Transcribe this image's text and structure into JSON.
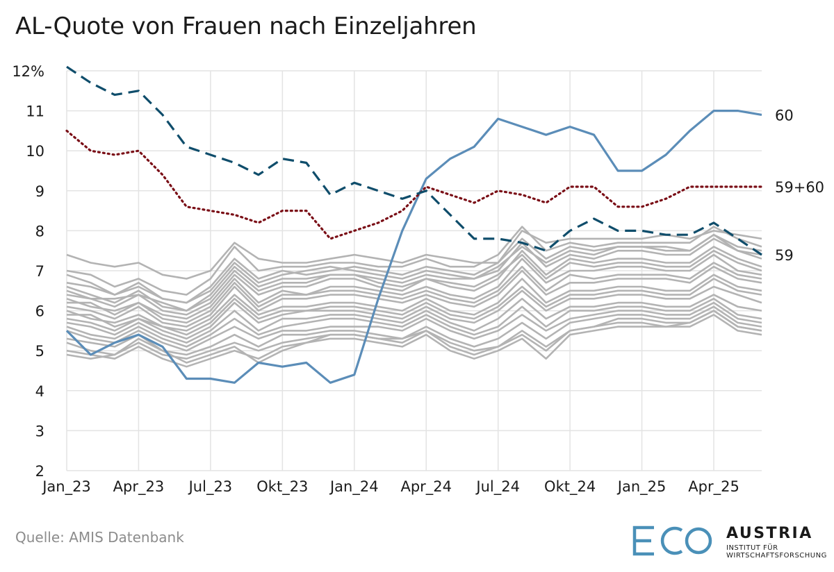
{
  "chart_data": {
    "type": "line",
    "title": "AL-Quote von Frauen nach Einzeljahren",
    "source": "Quelle: AMIS Datenbank",
    "ylim": [
      2,
      12
    ],
    "y_ticks": [
      "2",
      "3",
      "4",
      "5",
      "6",
      "7",
      "8",
      "9",
      "10",
      "11",
      "12%"
    ],
    "x_tick_labels": [
      "Jan_23",
      "Apr_23",
      "Jul_23",
      "Okt_23",
      "Jan_24",
      "Apr_24",
      "Jul_24",
      "Okt_24",
      "Jan_25",
      "Apr_25"
    ],
    "x_tick_index": [
      0,
      3,
      6,
      9,
      12,
      15,
      18,
      21,
      24,
      27
    ],
    "n_points": 30,
    "grid": true,
    "highlight_series": [
      {
        "name": "60",
        "color": "#5b8db8",
        "style": "solid",
        "values": [
          5.5,
          4.9,
          5.2,
          5.4,
          5.1,
          4.3,
          4.3,
          4.2,
          4.7,
          4.6,
          4.7,
          4.2,
          4.4,
          6.3,
          8.0,
          9.3,
          9.8,
          10.1,
          10.8,
          10.6,
          10.4,
          10.6,
          10.4,
          9.5,
          9.5,
          9.9,
          10.5,
          11.0,
          11.0,
          10.9
        ]
      },
      {
        "name": "59+60",
        "color": "#7a0e16",
        "style": "dotted",
        "values": [
          10.5,
          10.0,
          9.9,
          10.0,
          9.4,
          8.6,
          8.5,
          8.4,
          8.2,
          8.5,
          8.5,
          7.8,
          8.0,
          8.2,
          8.5,
          9.1,
          8.9,
          8.7,
          9.0,
          8.9,
          8.7,
          9.1,
          9.1,
          8.6,
          8.6,
          8.8,
          9.1,
          9.1,
          9.1,
          9.1
        ]
      },
      {
        "name": "59",
        "color": "#0f4d6b",
        "style": "dashed",
        "values": [
          12.1,
          11.7,
          11.4,
          11.5,
          10.9,
          10.1,
          9.9,
          9.7,
          9.4,
          9.8,
          9.7,
          8.9,
          9.2,
          9.0,
          8.8,
          9.0,
          8.4,
          7.8,
          7.8,
          7.7,
          7.5,
          8.0,
          8.3,
          8.0,
          8.0,
          7.9,
          7.9,
          8.2,
          7.8,
          7.4
        ]
      }
    ],
    "background_series": {
      "color": "#b3b3b3",
      "values": [
        [
          7.4,
          7.2,
          7.1,
          7.2,
          6.9,
          6.8,
          7.0,
          7.7,
          7.3,
          7.2,
          7.2,
          7.3,
          7.4,
          7.3,
          7.2,
          7.4,
          7.3,
          7.2,
          7.2,
          8.0,
          7.7,
          7.8,
          7.8,
          7.8,
          7.8,
          7.9,
          7.8,
          8.0,
          7.9,
          7.8
        ],
        [
          7.0,
          6.9,
          6.6,
          6.8,
          6.5,
          6.4,
          6.8,
          7.6,
          7.0,
          7.1,
          7.1,
          7.2,
          7.2,
          7.1,
          7.1,
          7.3,
          7.1,
          7.1,
          7.4,
          8.1,
          7.5,
          7.7,
          7.6,
          7.7,
          7.7,
          7.7,
          7.7,
          8.1,
          7.8,
          7.6
        ],
        [
          6.7,
          6.6,
          6.4,
          6.7,
          6.3,
          6.2,
          6.6,
          7.3,
          6.8,
          7.0,
          6.9,
          7.0,
          7.1,
          7.0,
          6.9,
          7.1,
          7.0,
          6.9,
          7.2,
          7.8,
          7.3,
          7.6,
          7.5,
          7.6,
          7.6,
          7.6,
          7.5,
          7.9,
          7.6,
          7.5
        ],
        [
          6.6,
          6.4,
          6.2,
          6.5,
          6.1,
          6.0,
          6.4,
          7.1,
          6.6,
          6.8,
          6.8,
          6.9,
          6.9,
          6.8,
          6.7,
          6.9,
          6.8,
          6.8,
          7.0,
          7.7,
          7.1,
          7.4,
          7.3,
          7.5,
          7.5,
          7.4,
          7.4,
          7.8,
          7.5,
          7.3
        ],
        [
          6.4,
          6.3,
          6.1,
          6.4,
          6.0,
          5.9,
          6.2,
          6.9,
          6.4,
          6.6,
          6.6,
          6.8,
          6.8,
          6.6,
          6.5,
          6.8,
          6.6,
          6.5,
          6.8,
          7.5,
          6.9,
          7.3,
          7.2,
          7.3,
          7.3,
          7.2,
          7.2,
          7.6,
          7.3,
          7.1
        ],
        [
          6.3,
          6.1,
          6.0,
          6.2,
          5.9,
          5.8,
          6.1,
          6.8,
          6.2,
          6.5,
          6.4,
          6.6,
          6.6,
          6.5,
          6.4,
          6.6,
          6.4,
          6.3,
          6.6,
          7.3,
          6.7,
          7.0,
          7.0,
          7.1,
          7.1,
          7.0,
          7.0,
          7.4,
          7.0,
          6.9
        ],
        [
          6.1,
          6.0,
          5.8,
          6.1,
          5.7,
          5.6,
          5.9,
          6.6,
          6.0,
          6.3,
          6.3,
          6.4,
          6.4,
          6.3,
          6.2,
          6.4,
          6.2,
          6.1,
          6.4,
          7.0,
          6.4,
          6.7,
          6.7,
          6.8,
          6.8,
          6.8,
          6.7,
          7.1,
          6.8,
          6.7
        ],
        [
          6.0,
          5.8,
          5.7,
          5.9,
          5.6,
          5.5,
          5.8,
          6.4,
          5.9,
          6.1,
          6.1,
          6.2,
          6.2,
          6.1,
          6.0,
          6.3,
          6.0,
          5.9,
          6.2,
          6.8,
          6.2,
          6.5,
          6.5,
          6.6,
          6.6,
          6.5,
          6.5,
          6.9,
          6.6,
          6.5
        ],
        [
          5.8,
          5.7,
          5.5,
          5.8,
          5.5,
          5.3,
          5.6,
          6.2,
          5.7,
          5.9,
          6.0,
          6.0,
          6.0,
          5.9,
          5.8,
          6.1,
          5.8,
          5.7,
          6.0,
          6.5,
          6.0,
          6.3,
          6.3,
          6.4,
          6.4,
          6.3,
          6.3,
          6.6,
          6.4,
          6.2
        ],
        [
          5.7,
          5.6,
          5.4,
          5.7,
          5.4,
          5.2,
          5.5,
          6.0,
          5.5,
          5.8,
          5.8,
          5.9,
          5.9,
          5.8,
          5.7,
          6.0,
          5.7,
          5.5,
          5.8,
          6.3,
          5.8,
          6.1,
          6.1,
          6.2,
          6.2,
          6.1,
          6.1,
          6.4,
          6.1,
          6.0
        ],
        [
          5.6,
          5.4,
          5.3,
          5.6,
          5.3,
          5.1,
          5.4,
          5.8,
          5.4,
          5.6,
          5.7,
          5.8,
          5.8,
          5.7,
          5.6,
          5.9,
          5.6,
          5.4,
          5.6,
          6.1,
          5.6,
          6.0,
          6.0,
          6.1,
          6.1,
          6.0,
          6.0,
          6.3,
          5.9,
          5.8
        ],
        [
          5.5,
          5.3,
          5.2,
          5.5,
          5.2,
          5.0,
          5.3,
          5.6,
          5.3,
          5.5,
          5.5,
          5.6,
          5.6,
          5.6,
          5.5,
          5.8,
          5.5,
          5.3,
          5.5,
          5.9,
          5.5,
          5.8,
          5.9,
          6.0,
          6.0,
          5.9,
          5.9,
          6.2,
          5.8,
          5.7
        ],
        [
          5.3,
          5.2,
          5.1,
          5.4,
          5.0,
          4.9,
          5.1,
          5.4,
          5.1,
          5.4,
          5.4,
          5.5,
          5.5,
          5.4,
          5.3,
          5.6,
          5.3,
          5.1,
          5.3,
          5.7,
          5.3,
          5.7,
          5.8,
          5.9,
          5.9,
          5.8,
          5.8,
          6.1,
          5.7,
          5.6
        ],
        [
          5.2,
          5.0,
          4.9,
          5.2,
          4.9,
          4.8,
          5.0,
          5.2,
          5.0,
          5.2,
          5.3,
          5.4,
          5.4,
          5.3,
          5.2,
          5.5,
          5.2,
          5.0,
          5.1,
          5.5,
          5.1,
          5.5,
          5.6,
          5.8,
          5.8,
          5.7,
          5.7,
          6.0,
          5.6,
          5.5
        ],
        [
          5.0,
          4.9,
          4.8,
          5.1,
          4.8,
          4.6,
          4.8,
          5.0,
          4.8,
          5.1,
          5.2,
          5.3,
          5.3,
          5.2,
          5.1,
          5.4,
          5.0,
          4.8,
          5.0,
          5.3,
          4.8,
          5.4,
          5.5,
          5.6,
          5.6,
          5.6,
          5.6,
          5.9,
          5.5,
          5.4
        ],
        [
          4.9,
          4.8,
          4.9,
          5.3,
          5.0,
          4.7,
          4.9,
          5.1,
          4.7,
          5.0,
          5.2,
          5.4,
          5.4,
          5.3,
          5.3,
          5.5,
          5.1,
          4.9,
          5.1,
          5.4,
          5.0,
          5.5,
          5.6,
          5.7,
          5.7,
          5.6,
          5.7,
          6.0,
          5.6,
          5.5
        ],
        [
          6.9,
          6.7,
          6.4,
          6.6,
          6.3,
          6.2,
          6.5,
          7.2,
          6.7,
          6.9,
          7.0,
          7.1,
          7.0,
          6.9,
          6.8,
          7.0,
          6.9,
          6.8,
          7.1,
          7.6,
          7.2,
          7.5,
          7.4,
          7.6,
          7.6,
          7.5,
          7.5,
          7.9,
          7.5,
          7.4
        ],
        [
          6.5,
          6.3,
          6.3,
          6.4,
          6.2,
          6.0,
          6.3,
          7.0,
          6.5,
          6.7,
          6.7,
          6.9,
          6.9,
          6.7,
          6.6,
          6.8,
          6.7,
          6.6,
          6.9,
          7.4,
          6.8,
          7.2,
          7.1,
          7.2,
          7.2,
          7.1,
          7.1,
          7.5,
          7.2,
          7.0
        ],
        [
          6.2,
          6.2,
          5.9,
          6.2,
          5.8,
          5.7,
          6.0,
          6.7,
          6.1,
          6.4,
          6.4,
          6.5,
          6.5,
          6.4,
          6.3,
          6.5,
          6.3,
          6.2,
          6.5,
          7.1,
          6.5,
          6.9,
          6.8,
          6.9,
          6.9,
          6.9,
          6.8,
          7.2,
          6.9,
          6.8
        ],
        [
          5.9,
          5.9,
          5.6,
          5.8,
          5.6,
          5.4,
          5.7,
          6.3,
          5.8,
          6.0,
          6.0,
          6.1,
          6.1,
          6.0,
          5.9,
          6.2,
          5.9,
          5.8,
          6.1,
          6.6,
          6.1,
          6.4,
          6.4,
          6.5,
          6.5,
          6.4,
          6.4,
          6.8,
          6.5,
          6.4
        ]
      ]
    }
  },
  "logo": {
    "mark": "ECO",
    "name": "AUSTRIA",
    "sub1": "INSTITUT FÜR",
    "sub2": "WIRTSCHAFTSFORSCHUNG",
    "color": "#4a90b8"
  }
}
